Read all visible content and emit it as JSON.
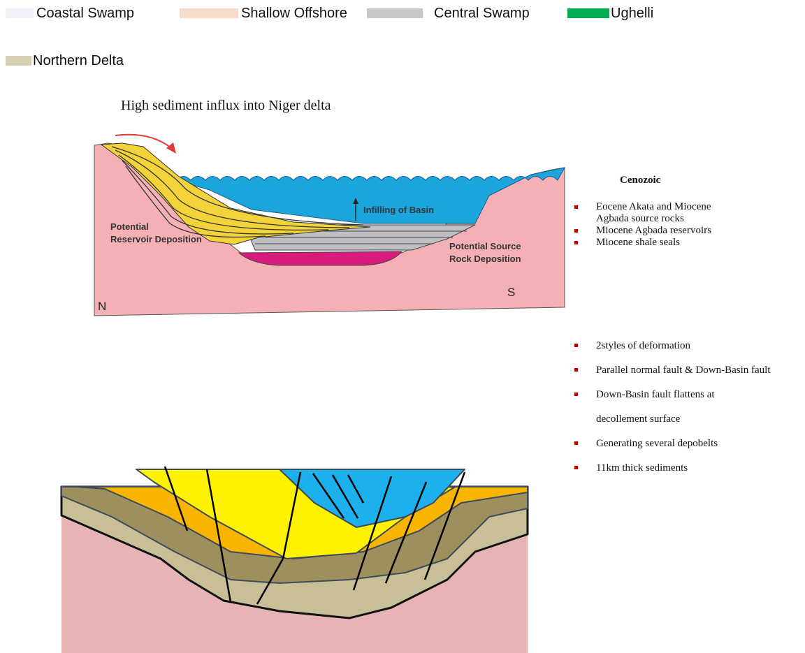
{
  "legend": {
    "items": [
      {
        "label": "Coastal Swamp",
        "color": "#eef2f8"
      },
      {
        "label": "Shallow Offshore",
        "color": "#f8dccb"
      },
      {
        "label": "Central Swamp",
        "color": "#c8c8cc"
      },
      {
        "label": "Ughelli",
        "color": "#00b050"
      },
      {
        "label": "Northern Delta",
        "color": "#d6ceb0"
      }
    ]
  },
  "top_diagram": {
    "caption": "High sediment influx into Niger delta",
    "infilling_label": "Infilling of Basin",
    "reservoir_label": [
      "Potential",
      "Reservoir Deposition"
    ],
    "source_label": [
      "Potential Source",
      "Rock Deposition"
    ],
    "north": "N",
    "south": "S"
  },
  "side_panel": {
    "heading": "Cenozoic",
    "petroleum_bullets": [
      "Eocene Akata and Miocene Agbada source rocks",
      "Miocene Agbada reservoirs",
      "Miocene shale seals"
    ],
    "structure_bullets": [
      "2styles of deformation",
      "Parallel normal fault & Down-Basin fault",
      "Down-Basin fault flattens at decollement surface",
      "Generating several depobelts",
      "11km thick sediments"
    ]
  }
}
